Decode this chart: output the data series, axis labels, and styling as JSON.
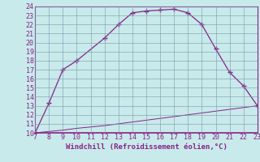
{
  "xlabel": "Windchill (Refroidissement éolien,°C)",
  "x_curve1": [
    7,
    8,
    9,
    10,
    12,
    13,
    14,
    15,
    16,
    17,
    18,
    19,
    20,
    21,
    22,
    23
  ],
  "y_curve1": [
    10.0,
    13.3,
    17.0,
    18.0,
    20.5,
    22.0,
    23.3,
    23.5,
    23.6,
    23.7,
    23.3,
    22.0,
    19.3,
    16.7,
    15.2,
    13.0
  ],
  "x_curve2": [
    7,
    8,
    9,
    10,
    11,
    12,
    13,
    14,
    15,
    16,
    17,
    18,
    19,
    20,
    21,
    22,
    23
  ],
  "y_curve2": [
    10.0,
    10.15,
    10.3,
    10.5,
    10.65,
    10.8,
    11.0,
    11.2,
    11.4,
    11.6,
    11.8,
    12.0,
    12.2,
    12.4,
    12.6,
    12.8,
    13.0
  ],
  "line_color": "#882288",
  "bg_color": "#c8eaea",
  "grid_color": "#aaaaaa",
  "xlim": [
    7,
    23
  ],
  "ylim": [
    10,
    24
  ],
  "xticks": [
    7,
    8,
    9,
    10,
    11,
    12,
    13,
    14,
    15,
    16,
    17,
    18,
    19,
    20,
    21,
    22,
    23
  ],
  "yticks": [
    10,
    11,
    12,
    13,
    14,
    15,
    16,
    17,
    18,
    19,
    20,
    21,
    22,
    23,
    24
  ],
  "tick_fontsize": 6.0,
  "xlabel_fontsize": 6.5
}
